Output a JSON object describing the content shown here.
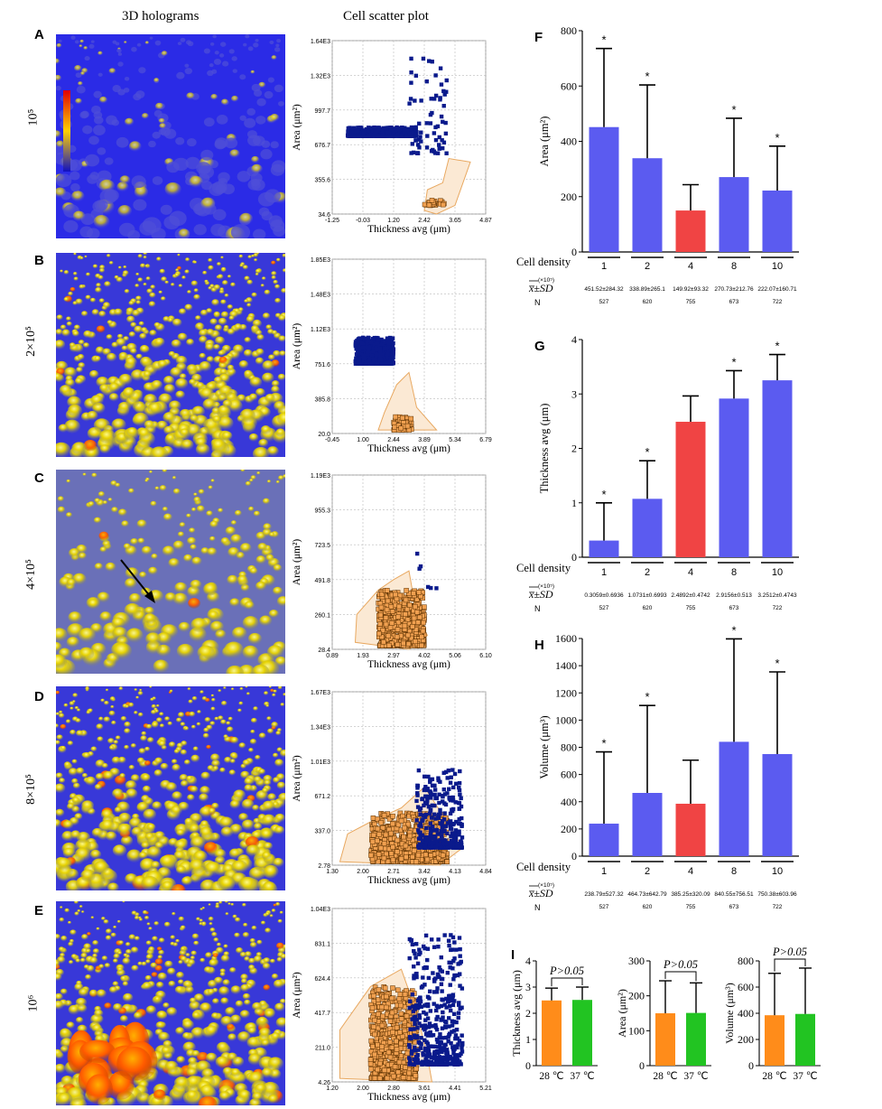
{
  "column_titles": {
    "left": "3D holograms",
    "middle": "Cell scatter plot"
  },
  "rows": [
    {
      "letter": "A",
      "density": "10⁵"
    },
    {
      "letter": "B",
      "density": "2×10⁵"
    },
    {
      "letter": "C",
      "density": "4×10⁵"
    },
    {
      "letter": "D",
      "density": "8×10⁵"
    },
    {
      "letter": "E",
      "density": "10⁶"
    }
  ],
  "chart_data": [
    {
      "panel": "A",
      "type": "scatter",
      "xlabel": "Thickness avg (μm)",
      "ylabel": "Area (μm²)",
      "xticks": [
        "-1.25",
        "-0.03",
        "1.20",
        "2.42",
        "3.65",
        "4.87"
      ],
      "yticks": [
        "34.6",
        "355.6",
        "676.7",
        "997.7",
        "1.32E3",
        "1.64E3"
      ],
      "xlim": [
        -1.25,
        4.87
      ],
      "ylim": [
        34.6,
        1640
      ],
      "series": [
        {
          "color": "#0a1a8c"
        },
        {
          "color": "#f0a050"
        }
      ]
    },
    {
      "panel": "B",
      "type": "scatter",
      "xlabel": "Thickness avg (μm)",
      "ylabel": "Area (μm²)",
      "xticks": [
        "-0.45",
        "1.00",
        "2.44",
        "3.89",
        "5.34",
        "6.79"
      ],
      "yticks": [
        "20.0",
        "385.8",
        "751.6",
        "1.12E3",
        "1.48E3",
        "1.85E3"
      ],
      "xlim": [
        -0.45,
        6.79
      ],
      "ylim": [
        20.0,
        1850
      ],
      "series": [
        {
          "color": "#0a1a8c"
        },
        {
          "color": "#f0a050"
        }
      ]
    },
    {
      "panel": "C",
      "type": "scatter",
      "xlabel": "Thickness avg (μm)",
      "ylabel": "Area (μm²)",
      "xticks": [
        "0.89",
        "1.93",
        "2.97",
        "4.02",
        "5.06",
        "6.10"
      ],
      "yticks": [
        "28.4",
        "260.1",
        "491.8",
        "723.5",
        "955.3",
        "1.19E3"
      ],
      "xlim": [
        0.89,
        6.1
      ],
      "ylim": [
        28.4,
        1190
      ],
      "series": [
        {
          "color": "#0a1a8c"
        },
        {
          "color": "#f0a050"
        }
      ]
    },
    {
      "panel": "D",
      "type": "scatter",
      "xlabel": "Thickness avg (μm)",
      "ylabel": "Area (μm²)",
      "xticks": [
        "1.30",
        "2.00",
        "2.71",
        "3.42",
        "4.13",
        "4.84"
      ],
      "yticks": [
        "2.78",
        "337.0",
        "671.2",
        "1.01E3",
        "1.34E3",
        "1.67E3"
      ],
      "xlim": [
        1.3,
        4.84
      ],
      "ylim": [
        2.78,
        1670
      ],
      "series": [
        {
          "color": "#0a1a8c"
        },
        {
          "color": "#f0a050"
        }
      ]
    },
    {
      "panel": "E",
      "type": "scatter",
      "xlabel": "Thickness avg (μm)",
      "ylabel": "Area (μm²)",
      "xticks": [
        "1.20",
        "2.00",
        "2.80",
        "3.61",
        "4.41",
        "5.21"
      ],
      "yticks": [
        "4.26",
        "211.0",
        "417.7",
        "624.4",
        "831.1",
        "1.04E3"
      ],
      "xlim": [
        1.2,
        5.21
      ],
      "ylim": [
        4.26,
        1040
      ],
      "series": [
        {
          "color": "#0a1a8c"
        },
        {
          "color": "#f0a050"
        }
      ]
    },
    {
      "panel": "F",
      "type": "bar",
      "ylabel": "Area (μm²)",
      "ylim": [
        0,
        800
      ],
      "yticks": [
        "0",
        "200",
        "400",
        "600",
        "800"
      ],
      "categories": [
        "1",
        "2",
        "4",
        "8",
        "10"
      ],
      "values": [
        451.52,
        338.89,
        149.92,
        270.73,
        222.07
      ],
      "errors": [
        284.32,
        265.1,
        93.32,
        212.76,
        160.71
      ],
      "colors": [
        "#5b5bf0",
        "#5b5bf0",
        "#f04444",
        "#5b5bf0",
        "#5b5bf0"
      ],
      "stars": [
        "*",
        "*",
        "",
        "*",
        "*"
      ],
      "row_label_density": "Cell density",
      "row_label_unit": "(×10⁵)",
      "row_label_stats": "x̅±SD",
      "row_label_n": "N",
      "stats_text": [
        "451.52±284.32",
        "338.89±265.1",
        "149.92±93.32",
        "270.73±212.76",
        "222.07±160.71"
      ],
      "n": [
        "527",
        "620",
        "755",
        "673",
        "722"
      ]
    },
    {
      "panel": "G",
      "type": "bar",
      "ylabel": "Thickness avg (μm)",
      "ylim": [
        0,
        4
      ],
      "yticks": [
        "0",
        "1",
        "2",
        "3",
        "4"
      ],
      "categories": [
        "1",
        "2",
        "4",
        "8",
        "10"
      ],
      "values": [
        0.3059,
        1.0731,
        2.4892,
        2.9156,
        3.2512
      ],
      "errors": [
        0.6936,
        0.6993,
        0.4742,
        0.513,
        0.4743
      ],
      "colors": [
        "#5b5bf0",
        "#5b5bf0",
        "#f04444",
        "#5b5bf0",
        "#5b5bf0"
      ],
      "stars": [
        "*",
        "*",
        "",
        "*",
        "*"
      ],
      "row_label_density": "Cell density",
      "row_label_unit": "(×10⁵)",
      "row_label_stats": "x̅±SD",
      "row_label_n": "N",
      "stats_text": [
        "0.3059±0.6936",
        "1.0731±0.6993",
        "2.4892±0.4742",
        "2.9156±0.513",
        "3.2512±0.4743"
      ],
      "n": [
        "527",
        "620",
        "755",
        "673",
        "722"
      ]
    },
    {
      "panel": "H",
      "type": "bar",
      "ylabel": "Volume (μm³)",
      "ylim": [
        0,
        1600
      ],
      "yticks": [
        "0",
        "200",
        "400",
        "600",
        "800",
        "1000",
        "1200",
        "1400",
        "1600"
      ],
      "categories": [
        "1",
        "2",
        "4",
        "8",
        "10"
      ],
      "values": [
        238.79,
        464.73,
        385.25,
        840.55,
        750.38
      ],
      "errors": [
        527.32,
        642.79,
        320.09,
        756.51,
        603.96
      ],
      "colors": [
        "#5b5bf0",
        "#5b5bf0",
        "#f04444",
        "#5b5bf0",
        "#5b5bf0"
      ],
      "stars": [
        "*",
        "*",
        "",
        "*",
        "*"
      ],
      "row_label_density": "Cell density",
      "row_label_unit": "(×10⁵)",
      "row_label_stats": "x̅±SD",
      "row_label_n": "N",
      "stats_text": [
        "238.79±527.32",
        "464.73±642.79",
        "385.25±320.09",
        "840.55±756.51",
        "750.38±603.96"
      ],
      "n": [
        "527",
        "620",
        "755",
        "673",
        "722"
      ]
    },
    {
      "panel": "I-thickness",
      "type": "bar",
      "ylabel": "Thickness avg (μm)",
      "ylim": [
        0,
        4
      ],
      "yticks": [
        "0",
        "1",
        "2",
        "3",
        "4"
      ],
      "categories": [
        "28 ℃",
        "37 ℃"
      ],
      "values": [
        2.49,
        2.51
      ],
      "errors": [
        0.47,
        0.49
      ],
      "colors": [
        "#ff8c1a",
        "#22c422"
      ],
      "annotation": "P>0.05"
    },
    {
      "panel": "I-area",
      "type": "bar",
      "ylabel": "Area (μm²)",
      "ylim": [
        0,
        300
      ],
      "yticks": [
        "0",
        "100",
        "200",
        "300"
      ],
      "categories": [
        "28 ℃",
        "37 ℃"
      ],
      "values": [
        150,
        151
      ],
      "errors": [
        93,
        86
      ],
      "colors": [
        "#ff8c1a",
        "#22c422"
      ],
      "annotation": "P>0.05"
    },
    {
      "panel": "I-volume",
      "type": "bar",
      "ylabel": "Volume (μm³)",
      "ylim": [
        0,
        800
      ],
      "yticks": [
        "0",
        "200",
        "400",
        "600",
        "800"
      ],
      "categories": [
        "28 ℃",
        "37 ℃"
      ],
      "values": [
        385,
        395
      ],
      "errors": [
        320,
        350
      ],
      "colors": [
        "#ff8c1a",
        "#22c422"
      ],
      "annotation": "P>0.05"
    }
  ],
  "panel_letters": {
    "F": "F",
    "G": "G",
    "H": "H",
    "I": "I"
  }
}
